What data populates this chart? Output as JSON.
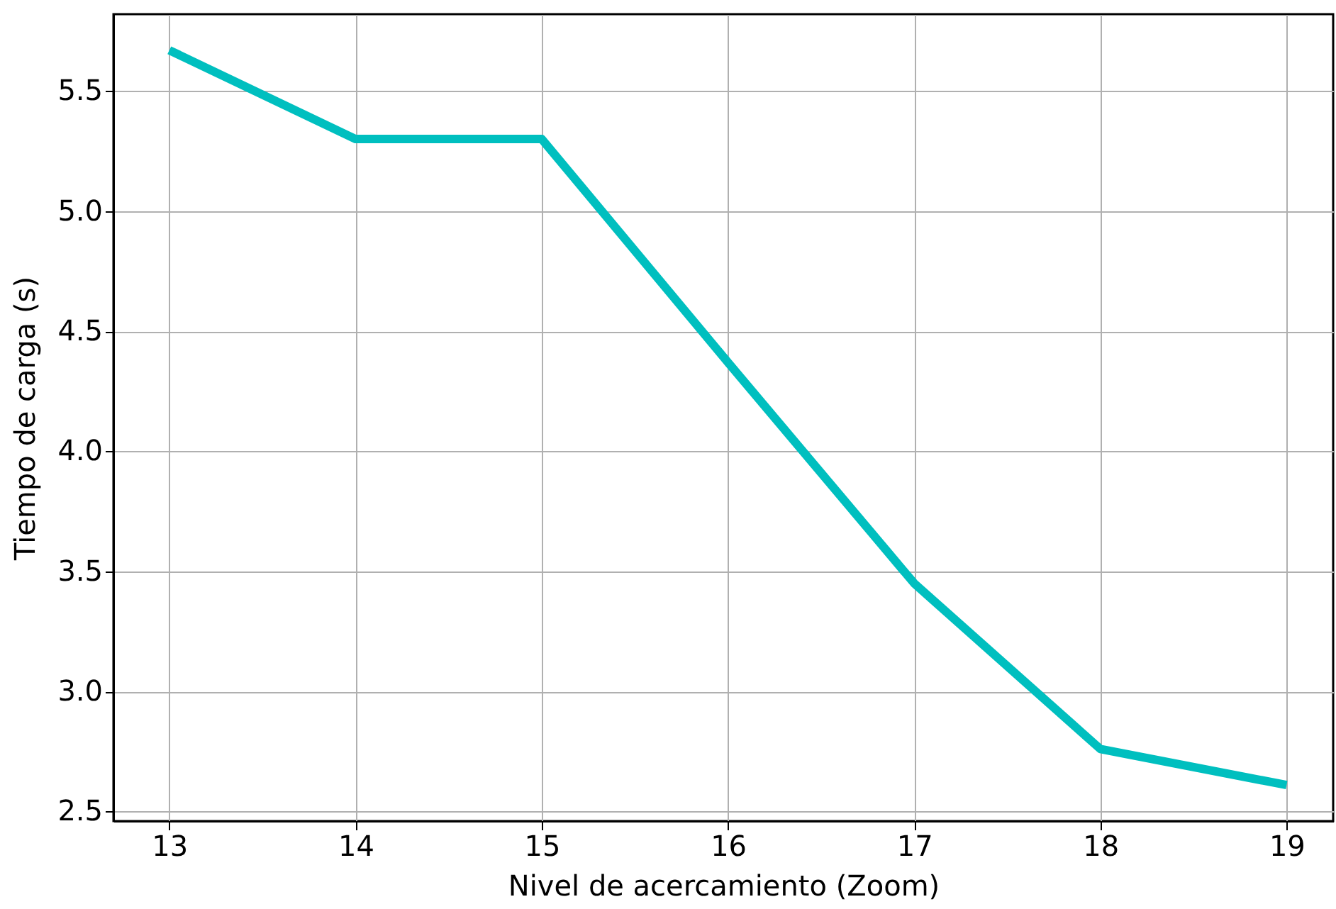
{
  "chart_data": {
    "type": "line",
    "xlabel": "Nivel de acercamiento (Zoom)",
    "ylabel": "Tiempo de carga (s)",
    "x": [
      13,
      14,
      15,
      16,
      17,
      18,
      19
    ],
    "series": [
      {
        "color": "#00bfbf",
        "values": [
          5.67,
          5.3,
          5.3,
          4.37,
          3.45,
          2.76,
          2.61
        ]
      }
    ],
    "xlim": [
      12.7,
      19.25
    ],
    "xticks": [
      13,
      14,
      15,
      16,
      17,
      18,
      19
    ],
    "ylim": [
      2.46,
      5.82
    ],
    "yticks": [
      {
        "value": 2.5,
        "label": "2.5"
      },
      {
        "value": 3,
        "label": "3.0"
      },
      {
        "value": 3.5,
        "label": "3.5"
      },
      {
        "value": 4,
        "label": "4.0"
      },
      {
        "value": 4.5,
        "label": "4.5"
      },
      {
        "value": 5,
        "label": "5.0"
      },
      {
        "value": 5.5,
        "label": "5.5"
      }
    ],
    "grid": true,
    "marker": "none",
    "line_style": "solid",
    "legend": false
  }
}
